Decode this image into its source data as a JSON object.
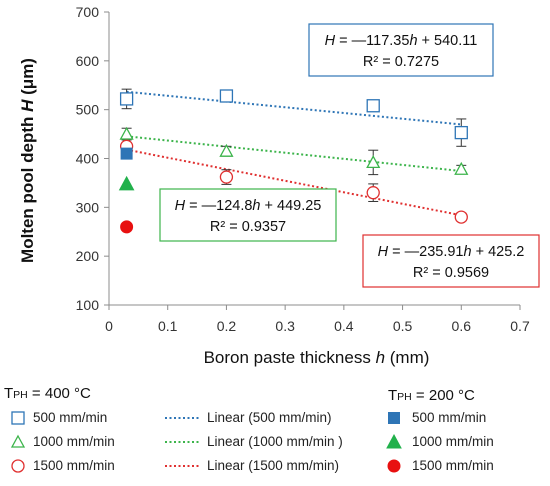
{
  "chart_data": {
    "type": "scatter",
    "xlabel": "Boron paste thickness h (mm)",
    "ylabel": "Molten pool depth H (μm)",
    "xlim": [
      0,
      0.7
    ],
    "ylim": [
      100,
      700
    ],
    "xticks": [
      "0",
      "0.1",
      "0.2",
      "0.3",
      "0.4",
      "0.5",
      "0.6",
      "0.7"
    ],
    "yticks": [
      "100",
      "200",
      "300",
      "400",
      "500",
      "600",
      "700"
    ],
    "grid": false,
    "series": [
      {
        "name": "500 mm/min",
        "group": "TPH = 400 °C",
        "marker": "open-square",
        "color": "#2E75B6",
        "x": [
          0.03,
          0.2,
          0.45,
          0.6
        ],
        "y": [
          522,
          528,
          508,
          453
        ],
        "err": [
          20,
          10,
          8,
          28
        ]
      },
      {
        "name": "1000 mm/min",
        "group": "TPH = 400 °C",
        "marker": "open-triangle",
        "color": "#3CB44B",
        "x": [
          0.03,
          0.2,
          0.45,
          0.6
        ],
        "y": [
          450,
          415,
          392,
          378
        ],
        "err": [
          12,
          10,
          25,
          8
        ]
      },
      {
        "name": "1500 mm/min",
        "group": "TPH = 400 °C",
        "marker": "open-circle",
        "color": "#E03030",
        "x": [
          0.03,
          0.2,
          0.45,
          0.6
        ],
        "y": [
          425,
          362,
          330,
          280
        ],
        "err": [
          8,
          15,
          18,
          8
        ]
      },
      {
        "name": "500 mm/min",
        "group": "TPH = 200 °C",
        "marker": "filled-square",
        "color": "#2E75B6",
        "x": [
          0.03
        ],
        "y": [
          410
        ]
      },
      {
        "name": "1000 mm/min",
        "group": "TPH = 200 °C",
        "marker": "filled-triangle",
        "color": "#22B14C",
        "x": [
          0.03
        ],
        "y": [
          348
        ]
      },
      {
        "name": "1500 mm/min",
        "group": "TPH = 200 °C",
        "marker": "filled-circle",
        "color": "#E81010",
        "x": [
          0.03
        ],
        "y": [
          260
        ]
      }
    ],
    "trendlines": [
      {
        "name": "Linear (500 mm/min)",
        "color": "#2E75B6",
        "slope": -117.35,
        "intercept": 540.11,
        "x_range": [
          0.03,
          0.6
        ],
        "equation": "= ―117.35h + 540.11",
        "r2": "R² = 0.7275"
      },
      {
        "name": "Linear (1000 mm/min )",
        "color": "#3CB44B",
        "slope": -124.8,
        "intercept": 449.25,
        "x_range": [
          0.03,
          0.6
        ],
        "equation": "= ―124.8h + 449.25",
        "r2": "R² = 0.9357"
      },
      {
        "name": "Linear (1500 mm/min)",
        "color": "#E03030",
        "slope": -235.91,
        "intercept": 425.2,
        "x_range": [
          0.03,
          0.6
        ],
        "equation": "= ―235.91h + 425.2",
        "r2": "R² = 0.9569"
      }
    ],
    "legend": {
      "group1_title": "T",
      "group1_sub": "PH",
      "group1_value": " = 400 °C",
      "group2_title": "T",
      "group2_sub": "PH",
      "group2_value": " = 200 °C",
      "eq_var": "H",
      "x_var": "h"
    }
  }
}
